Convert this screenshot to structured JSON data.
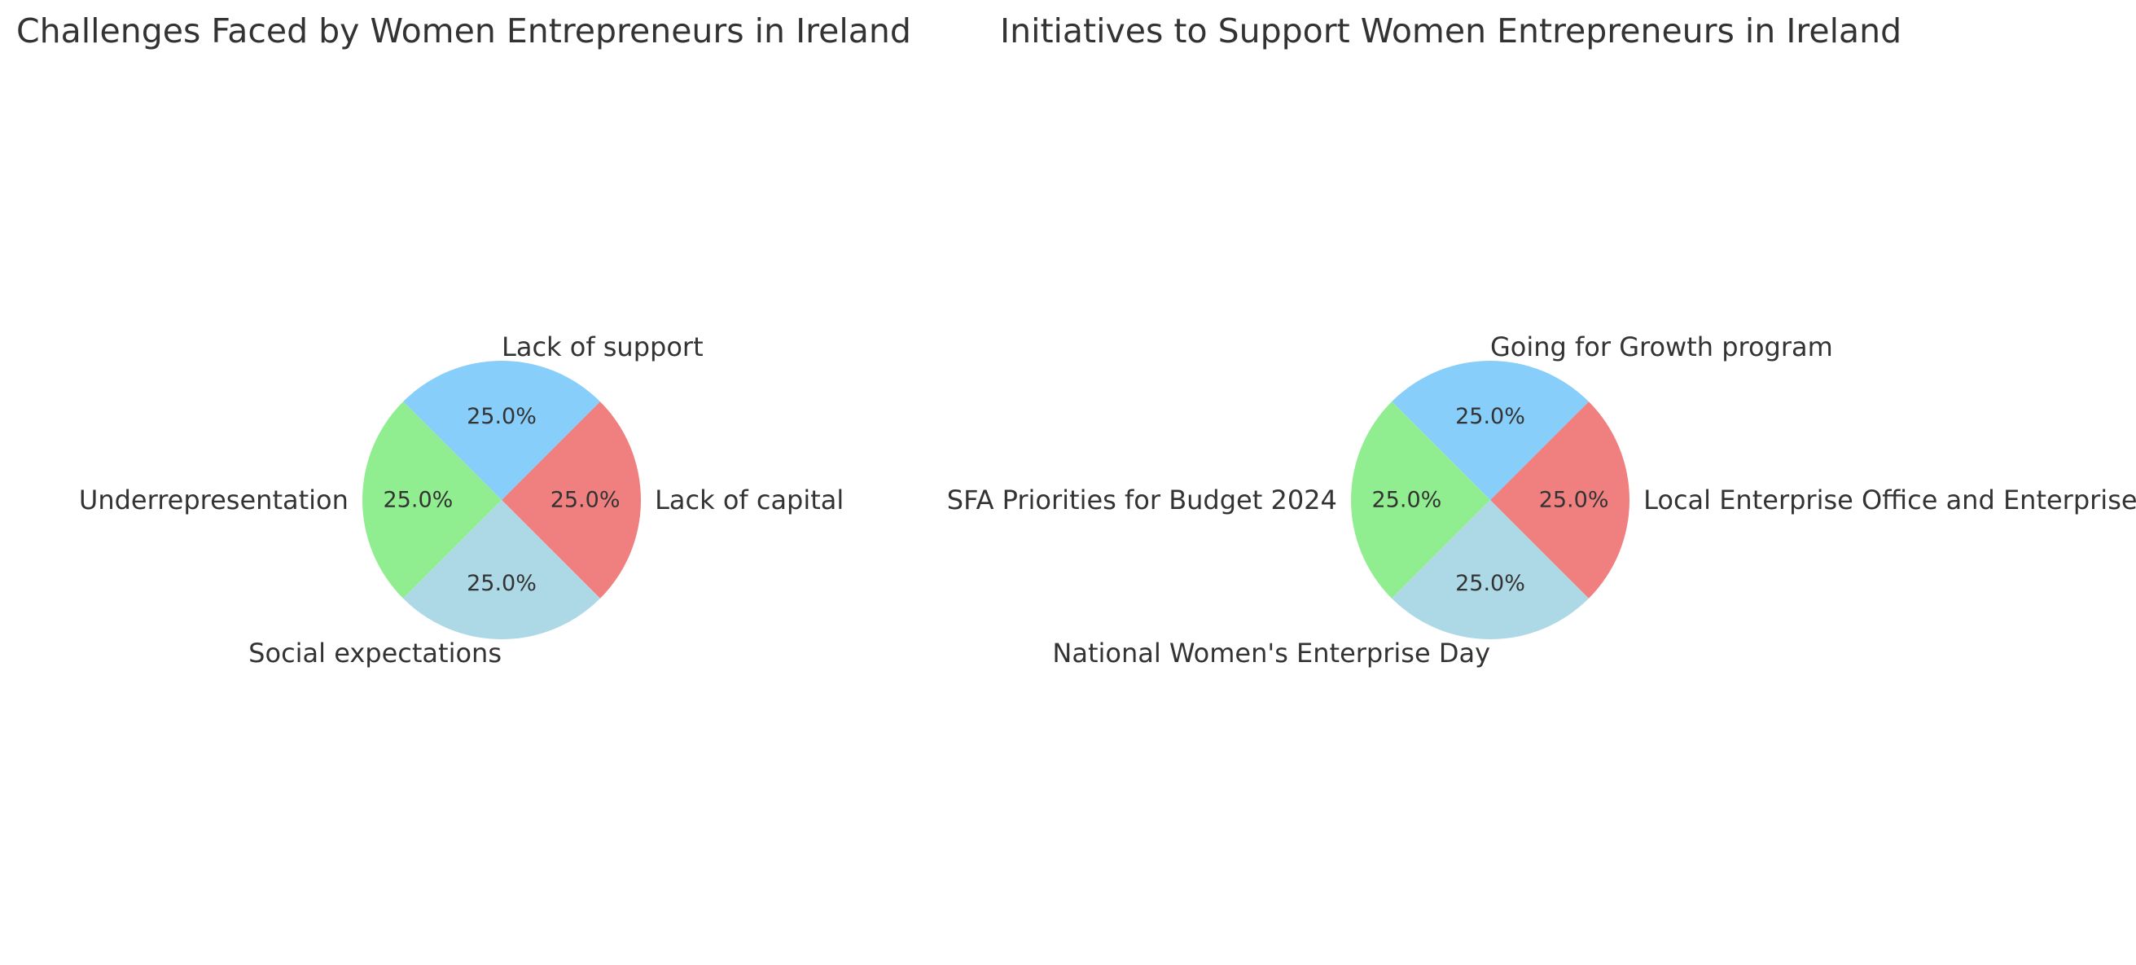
{
  "chart_data": [
    {
      "type": "pie",
      "title": "Challenges Faced by Women Entrepreneurs in Ireland",
      "categories": [
        "Lack of capital",
        "Lack of support",
        "Underrepresentation",
        "Social expectations"
      ],
      "values": [
        25,
        25,
        25,
        25
      ],
      "percent_labels": [
        "25.0%",
        "25.0%",
        "25.0%",
        "25.0%"
      ],
      "colors": [
        "#f08080",
        "#87cefa",
        "#90ee90",
        "#add8e6"
      ],
      "legend": "none"
    },
    {
      "type": "pie",
      "title": "Initiatives to Support Women Entrepreneurs in Ireland",
      "categories": [
        "Local Enterprise Office and Enterprise Ireland",
        "Going for Growth program",
        "SFA Priorities for Budget 2024",
        "National Women's Enterprise Day"
      ],
      "values": [
        25,
        25,
        25,
        25
      ],
      "percent_labels": [
        "25.0%",
        "25.0%",
        "25.0%",
        "25.0%"
      ],
      "colors": [
        "#f08080",
        "#87cefa",
        "#90ee90",
        "#add8e6"
      ],
      "legend": "none"
    }
  ]
}
